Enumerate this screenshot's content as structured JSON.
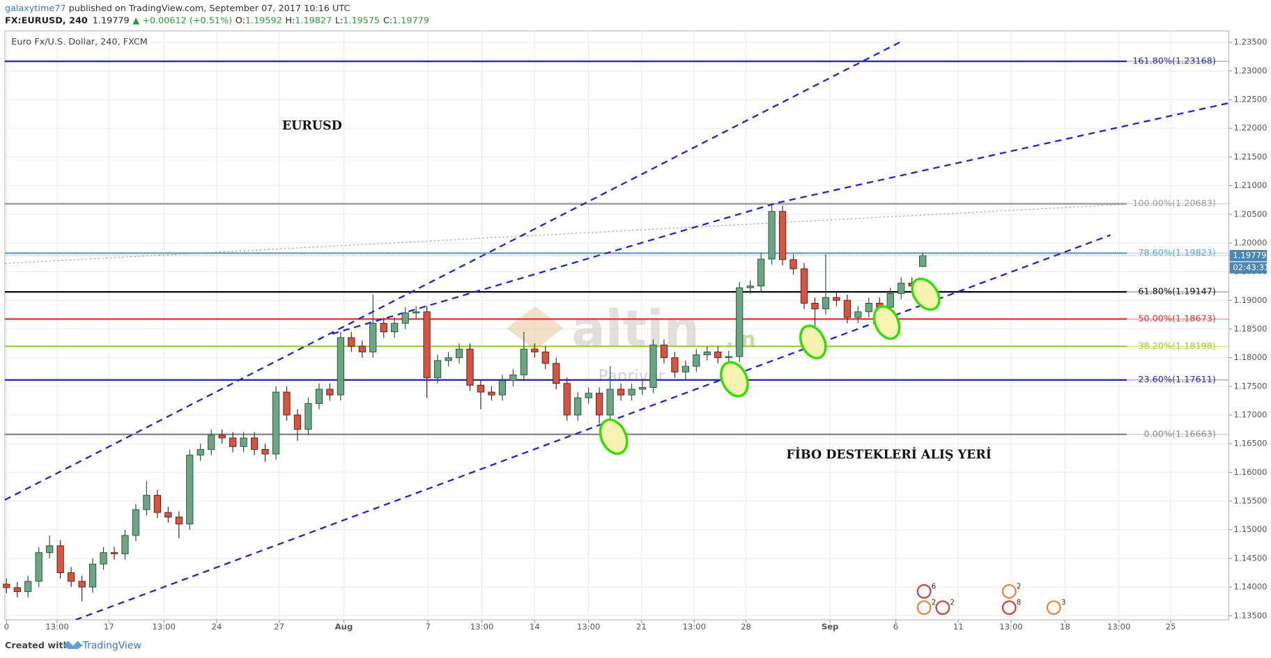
{
  "header": {
    "user": "galaxytime77",
    "published": " published on TradingView.com, September 07, 2017 10:16 UTC",
    "symbol": "FX:EURUSD, 240",
    "price": "1.19779",
    "change": "▲ +0.00612 (+0.51%)",
    "ohlc": [
      {
        "label": "O:",
        "value": "1.19592"
      },
      {
        "label": "H:",
        "value": "1.19827"
      },
      {
        "label": "L:",
        "value": "1.19575"
      },
      {
        "label": "C:",
        "value": "1.19779"
      }
    ]
  },
  "footer": {
    "created": "Created with",
    "brand": "TradingView"
  },
  "watermark": {
    "logo": "altin",
    "suffix": ".in",
    "credit": "Panriver"
  },
  "events": [
    "6",
    "2",
    "2",
    "2",
    "8",
    "3"
  ],
  "chart_data": {
    "type": "candlestick",
    "title": "Euro Fx/U.S. Dollar, 240, FXCM",
    "annotations": [
      "EURUSD",
      "FİBO DESTEKLERİ ALIŞ YERİ"
    ],
    "up_color": "#6ba583",
    "down_color": "#d75442",
    "grid": true,
    "x": [
      0,
      1,
      2,
      3,
      4,
      5,
      6,
      7,
      8,
      9,
      10,
      11,
      12,
      13,
      14,
      15,
      16,
      17,
      18,
      19,
      20,
      21,
      22,
      23,
      24,
      25,
      26,
      27,
      28,
      29,
      30,
      31,
      32,
      33,
      34,
      35,
      36,
      37,
      38,
      39,
      40,
      41,
      42,
      43,
      44,
      45,
      46,
      47,
      48,
      49,
      50,
      51,
      52,
      53,
      54,
      55,
      56,
      57,
      58,
      59,
      60,
      61,
      62,
      63,
      64,
      65,
      66,
      67,
      68,
      69,
      70,
      71,
      72,
      73,
      74,
      75,
      76,
      77,
      78,
      79,
      80,
      81,
      82,
      83,
      84,
      85
    ],
    "open": [
      1.1405,
      1.1399,
      1.1392,
      1.141,
      1.146,
      1.1472,
      1.1425,
      1.141,
      1.14,
      1.144,
      1.146,
      1.1458,
      1.149,
      1.1535,
      1.156,
      1.153,
      1.1522,
      1.151,
      1.163,
      1.164,
      1.1665,
      1.166,
      1.1645,
      1.166,
      1.164,
      1.1632,
      1.174,
      1.17,
      1.1675,
      1.172,
      1.1745,
      1.1735,
      1.1835,
      1.182,
      1.181,
      1.186,
      1.1845,
      1.186,
      1.1878,
      1.188,
      1.1765,
      1.1795,
      1.18,
      1.1815,
      1.1752,
      1.174,
      1.1735,
      1.176,
      1.177,
      1.1815,
      1.181,
      1.179,
      1.1755,
      1.17,
      1.173,
      1.1738,
      1.17,
      1.1745,
      1.1735,
      1.1745,
      1.1748,
      1.1822,
      1.18,
      1.1775,
      1.1785,
      1.1805,
      1.181,
      1.18,
      1.1802,
      1.1922,
      1.1925,
      1.1972,
      1.2055,
      1.1971,
      1.1955,
      1.1895,
      1.1885,
      1.1905,
      1.19,
      1.187,
      1.188,
      1.1895,
      1.1888,
      1.1912,
      1.193,
      1.1959
    ],
    "high": [
      1.1415,
      1.1409,
      1.142,
      1.147,
      1.149,
      1.1482,
      1.1435,
      1.142,
      1.145,
      1.147,
      1.147,
      1.15,
      1.1545,
      1.1585,
      1.157,
      1.154,
      1.1532,
      1.164,
      1.165,
      1.1675,
      1.1675,
      1.167,
      1.167,
      1.167,
      1.165,
      1.175,
      1.175,
      1.171,
      1.173,
      1.1755,
      1.1755,
      1.1845,
      1.1845,
      1.183,
      1.191,
      1.187,
      1.187,
      1.1888,
      1.189,
      1.189,
      1.1805,
      1.181,
      1.1825,
      1.1825,
      1.1762,
      1.175,
      1.177,
      1.178,
      1.1845,
      1.1825,
      1.182,
      1.18,
      1.1765,
      1.174,
      1.1748,
      1.1748,
      1.1785,
      1.1755,
      1.1755,
      1.176,
      1.1832,
      1.1832,
      1.181,
      1.1795,
      1.1815,
      1.182,
      1.182,
      1.1812,
      1.1932,
      1.1935,
      1.1982,
      1.2068,
      1.2065,
      1.1981,
      1.1965,
      1.1905,
      1.198,
      1.1915,
      1.191,
      1.189,
      1.1905,
      1.1905,
      1.1922,
      1.194,
      1.194,
      1.1983
    ],
    "low": [
      1.1389,
      1.1382,
      1.1382,
      1.14,
      1.145,
      1.1415,
      1.14,
      1.1375,
      1.139,
      1.143,
      1.1448,
      1.1448,
      1.148,
      1.1525,
      1.152,
      1.1512,
      1.1485,
      1.15,
      1.162,
      1.163,
      1.165,
      1.1635,
      1.1635,
      1.163,
      1.1618,
      1.1622,
      1.169,
      1.1655,
      1.1665,
      1.171,
      1.1725,
      1.1725,
      1.181,
      1.18,
      1.18,
      1.1835,
      1.1835,
      1.185,
      1.1868,
      1.173,
      1.1755,
      1.1785,
      1.179,
      1.1742,
      1.171,
      1.1725,
      1.1725,
      1.175,
      1.176,
      1.18,
      1.178,
      1.1745,
      1.169,
      1.169,
      1.172,
      1.1685,
      1.169,
      1.1725,
      1.1725,
      1.1735,
      1.1738,
      1.179,
      1.1765,
      1.176,
      1.1775,
      1.1795,
      1.179,
      1.179,
      1.1792,
      1.1912,
      1.1915,
      1.1962,
      1.1961,
      1.1945,
      1.1885,
      1.1855,
      1.1875,
      1.189,
      1.186,
      1.186,
      1.187,
      1.1878,
      1.1878,
      1.1902,
      1.1915,
      1.1958
    ],
    "close": [
      1.1399,
      1.1392,
      1.141,
      1.146,
      1.1472,
      1.1425,
      1.141,
      1.14,
      1.144,
      1.146,
      1.1458,
      1.149,
      1.1535,
      1.156,
      1.153,
      1.1522,
      1.151,
      1.163,
      1.164,
      1.1665,
      1.166,
      1.1645,
      1.166,
      1.164,
      1.1632,
      1.174,
      1.17,
      1.1675,
      1.172,
      1.1745,
      1.1735,
      1.1835,
      1.182,
      1.181,
      1.186,
      1.1845,
      1.186,
      1.1878,
      1.188,
      1.1765,
      1.1795,
      1.18,
      1.1815,
      1.1752,
      1.174,
      1.1735,
      1.176,
      1.177,
      1.1815,
      1.181,
      1.179,
      1.1755,
      1.17,
      1.173,
      1.1738,
      1.17,
      1.1745,
      1.1735,
      1.1745,
      1.1748,
      1.1822,
      1.18,
      1.1775,
      1.1785,
      1.1805,
      1.181,
      1.18,
      1.1802,
      1.1922,
      1.1925,
      1.1972,
      1.2055,
      1.1971,
      1.1955,
      1.1895,
      1.1885,
      1.1905,
      1.19,
      1.187,
      1.188,
      1.1895,
      1.1888,
      1.1912,
      1.193,
      1.1925,
      1.1978
    ],
    "xlim": [
      -0.15,
      113.4
    ],
    "xticks": [
      {
        "value": 0,
        "label": "0"
      },
      {
        "value": 4.7,
        "label": "13:00"
      },
      {
        "value": 9.5,
        "label": "17"
      },
      {
        "value": 14.6,
        "label": "13:00"
      },
      {
        "value": 19.5,
        "label": "24"
      },
      {
        "value": 25.3,
        "label": "27"
      },
      {
        "value": 31.3,
        "label": "Aug"
      },
      {
        "value": 39.1,
        "label": "7"
      },
      {
        "value": 44.1,
        "label": "13:00"
      },
      {
        "value": 49.0,
        "label": "14"
      },
      {
        "value": 54.0,
        "label": "13:00"
      },
      {
        "value": 58.9,
        "label": "21"
      },
      {
        "value": 63.8,
        "label": "13:00"
      },
      {
        "value": 68.6,
        "label": "28"
      },
      {
        "value": 76.4,
        "label": "Sep"
      },
      {
        "value": 82.5,
        "label": "6"
      },
      {
        "value": 88.3,
        "label": "11"
      },
      {
        "value": 93.2,
        "label": "13:00"
      },
      {
        "value": 98.2,
        "label": "18"
      },
      {
        "value": 103.2,
        "label": "13:00"
      },
      {
        "value": 108.0,
        "label": "25"
      }
    ],
    "ylim": [
      1.13429,
      1.23698
    ],
    "yticks": [
      {
        "value": 1.135,
        "label": "1.13500"
      },
      {
        "value": 1.14,
        "label": "1.14000"
      },
      {
        "value": 1.145,
        "label": "1.14500"
      },
      {
        "value": 1.15,
        "label": "1.15000"
      },
      {
        "value": 1.155,
        "label": "1.15500"
      },
      {
        "value": 1.16,
        "label": "1.16000"
      },
      {
        "value": 1.165,
        "label": "1.16500"
      },
      {
        "value": 1.17,
        "label": "1.17000"
      },
      {
        "value": 1.175,
        "label": "1.17500"
      },
      {
        "value": 1.18,
        "label": "1.18000"
      },
      {
        "value": 1.185,
        "label": "1.18500"
      },
      {
        "value": 1.19,
        "label": "1.19000"
      },
      {
        "value": 1.195,
        "label": "1.19500"
      },
      {
        "value": 1.2,
        "label": "1.20000"
      },
      {
        "value": 1.205,
        "label": "1.20500"
      },
      {
        "value": 1.21,
        "label": "1.21000"
      },
      {
        "value": 1.215,
        "label": "1.21500"
      },
      {
        "value": 1.22,
        "label": "1.22000"
      },
      {
        "value": 1.225,
        "label": "1.22500"
      },
      {
        "value": 1.23,
        "label": "1.23000"
      },
      {
        "value": 1.235,
        "label": "1.23500"
      }
    ],
    "levels": [
      {
        "label": "161.80%(1.23168)",
        "value": 1.23168,
        "color": "#2a2aa6"
      },
      {
        "label": "100.00%(1.20683)",
        "value": 1.20683,
        "color": "#9a9a9a"
      },
      {
        "label": "78.60%(1.19823)",
        "value": 1.19823,
        "color": "#5ba7c9"
      },
      {
        "label": "61.80%(1.19147)",
        "value": 1.19147,
        "color": "#111111"
      },
      {
        "label": "50.00%(1.18673)",
        "value": 1.18673,
        "color": "#e03030"
      },
      {
        "label": "38.20%(1.18198)",
        "value": 1.18198,
        "color": "#9ccc2e"
      },
      {
        "label": "23.60%(1.17611)",
        "value": 1.17611,
        "color": "#2a2aa6"
      },
      {
        "label": "0.00%(1.16663)",
        "value": 1.16663,
        "color": "#8a8a8a"
      }
    ],
    "last_price": 1.19779,
    "countdown": "02:43:31"
  }
}
